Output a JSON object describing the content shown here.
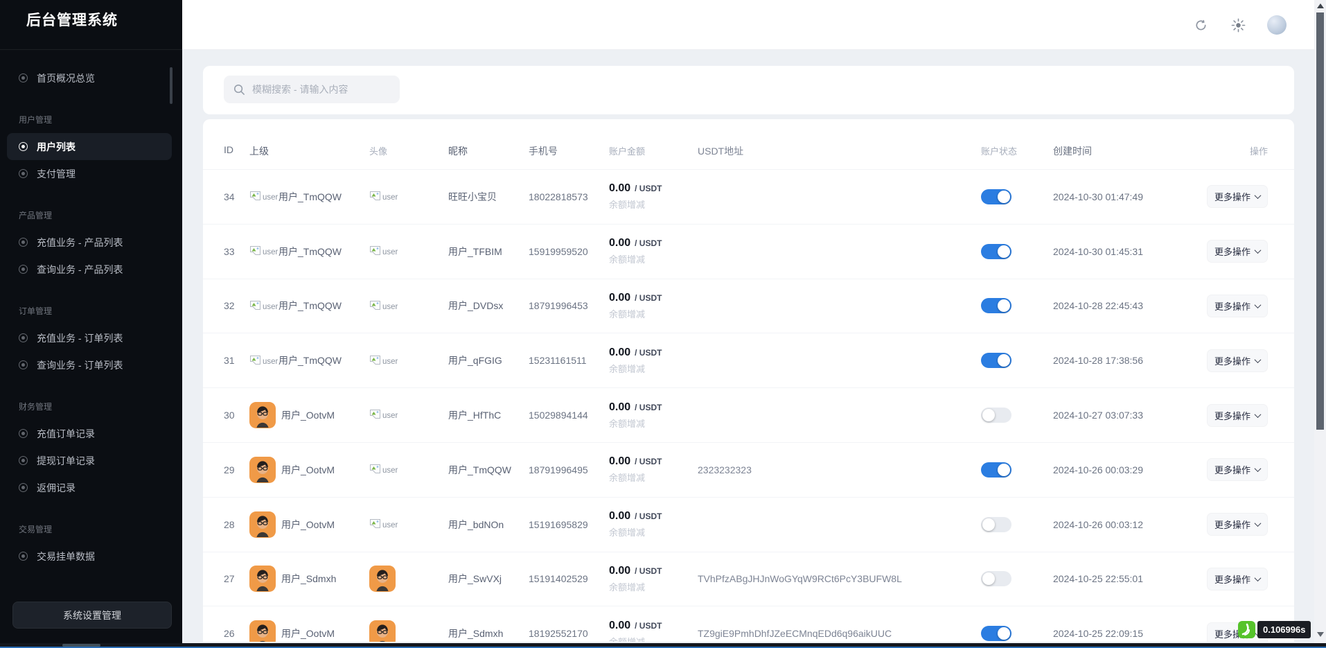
{
  "app": {
    "title": "后台管理系统"
  },
  "colors": {
    "accent": "#2b7de1",
    "sidebar_bg": "#0b0e13",
    "badge_green": "#56c32b",
    "toggle_off": "#e8ebf0"
  },
  "sidebar": {
    "sections": [
      {
        "label": "",
        "items": [
          {
            "label": "首页概况总览",
            "active": false
          }
        ]
      },
      {
        "label": "用户管理",
        "items": [
          {
            "label": "用户列表",
            "active": true
          },
          {
            "label": "支付管理",
            "active": false
          }
        ]
      },
      {
        "label": "产品管理",
        "items": [
          {
            "label": "充值业务 - 产品列表",
            "active": false
          },
          {
            "label": "查询业务 - 产品列表",
            "active": false
          }
        ]
      },
      {
        "label": "订单管理",
        "items": [
          {
            "label": "充值业务 - 订单列表",
            "active": false
          },
          {
            "label": "查询业务 - 订单列表",
            "active": false
          }
        ]
      },
      {
        "label": "财务管理",
        "items": [
          {
            "label": "充值订单记录",
            "active": false
          },
          {
            "label": "提现订单记录",
            "active": false
          },
          {
            "label": "返佣记录",
            "active": false
          }
        ]
      },
      {
        "label": "交易管理",
        "items": [
          {
            "label": "交易挂单数据",
            "active": false
          }
        ]
      }
    ],
    "settings_button": "系统设置管理"
  },
  "topbar": {
    "icons": [
      "refresh-icon",
      "theme-sun-icon",
      "user-avatar"
    ]
  },
  "search": {
    "placeholder": "模糊搜索 - 请输入内容"
  },
  "table": {
    "columns": [
      "ID",
      "上级",
      "头像",
      "昵称",
      "手机号",
      "账户金额",
      "USDT地址",
      "账户状态",
      "创建时间",
      "操作"
    ],
    "amount_suffix": "/ USDT",
    "balance_link": "余额增减",
    "more_action": "更多操作",
    "avatar_alt": "user",
    "rows": [
      {
        "id": "34",
        "parent_name": "用户_TmQQW",
        "parent_avatar": "broken",
        "avatar": "broken",
        "nickname": "旺旺小宝贝",
        "phone": "18022818573",
        "amount": "0.00",
        "usdt_address": "",
        "status": true,
        "created_at": "2024-10-30 01:47:49"
      },
      {
        "id": "33",
        "parent_name": "用户_TmQQW",
        "parent_avatar": "broken",
        "avatar": "broken",
        "nickname": "用户_TFBIM",
        "phone": "15919959520",
        "amount": "0.00",
        "usdt_address": "",
        "status": true,
        "created_at": "2024-10-30 01:45:31"
      },
      {
        "id": "32",
        "parent_name": "用户_TmQQW",
        "parent_avatar": "broken",
        "avatar": "broken",
        "nickname": "用户_DVDsx",
        "phone": "18791996453",
        "amount": "0.00",
        "usdt_address": "",
        "status": true,
        "created_at": "2024-10-28 22:45:43"
      },
      {
        "id": "31",
        "parent_name": "用户_TmQQW",
        "parent_avatar": "broken",
        "avatar": "broken",
        "nickname": "用户_qFGIG",
        "phone": "15231161511",
        "amount": "0.00",
        "usdt_address": "",
        "status": true,
        "created_at": "2024-10-28 17:38:56"
      },
      {
        "id": "30",
        "parent_name": "用户_OotvM",
        "parent_avatar": "photo",
        "avatar": "broken",
        "nickname": "用户_HfThC",
        "phone": "15029894144",
        "amount": "0.00",
        "usdt_address": "",
        "status": false,
        "created_at": "2024-10-27 03:07:33"
      },
      {
        "id": "29",
        "parent_name": "用户_OotvM",
        "parent_avatar": "photo",
        "avatar": "broken",
        "nickname": "用户_TmQQW",
        "phone": "18791996495",
        "amount": "0.00",
        "usdt_address": "2323232323",
        "status": true,
        "created_at": "2024-10-26 00:03:29"
      },
      {
        "id": "28",
        "parent_name": "用户_OotvM",
        "parent_avatar": "photo",
        "avatar": "broken",
        "nickname": "用户_bdNOn",
        "phone": "15191695829",
        "amount": "0.00",
        "usdt_address": "",
        "status": false,
        "created_at": "2024-10-26 00:03:12"
      },
      {
        "id": "27",
        "parent_name": "用户_Sdmxh",
        "parent_avatar": "photo",
        "avatar": "photo",
        "nickname": "用户_SwVXj",
        "phone": "15191402529",
        "amount": "0.00",
        "usdt_address": "TVhPfzABgJHJnWoGYqW9RCt6PcY3BUFW8L",
        "status": false,
        "created_at": "2024-10-25 22:55:01"
      },
      {
        "id": "26",
        "parent_name": "用户_OotvM",
        "parent_avatar": "photo",
        "avatar": "photo",
        "nickname": "用户_Sdmxh",
        "phone": "18192552170",
        "amount": "0.00",
        "usdt_address": "TZ9giE9PmhDhfJZeECMnqEDd6q96aikUUC",
        "status": true,
        "created_at": "2024-10-25 22:09:15"
      }
    ]
  },
  "perf": {
    "load_time": "0.106996s"
  }
}
